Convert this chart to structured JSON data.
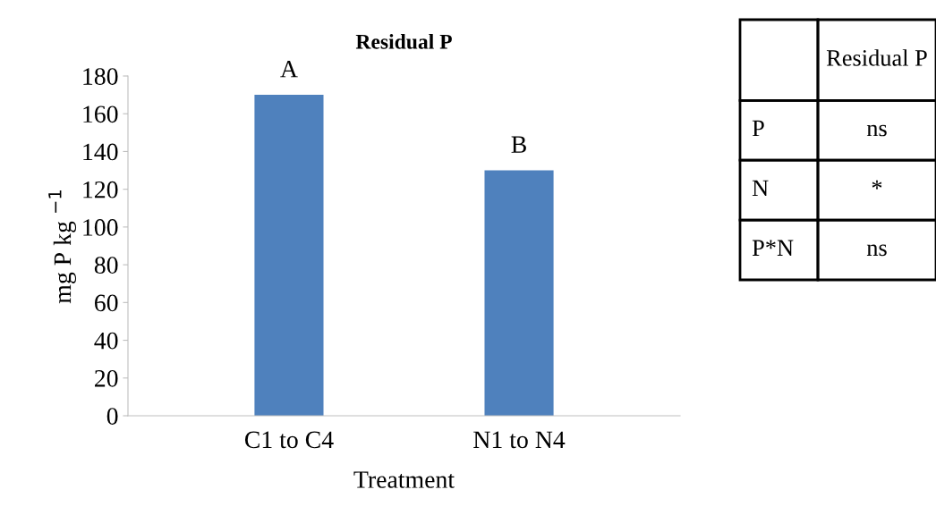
{
  "chart_data": {
    "type": "bar",
    "title": "Residual P",
    "xlabel": "Treatment",
    "ylabel": "mg P kg $^{−1}$",
    "categories": [
      "C1 to C4",
      "N1 to N4"
    ],
    "values": [
      170,
      130
    ],
    "color": "#4f81bd",
    "ylim": [
      0,
      180
    ],
    "yticks": [
      0,
      20,
      40,
      60,
      80,
      100,
      120,
      140,
      160,
      180
    ],
    "grid": false,
    "annotations": [
      {
        "text": "A",
        "x": "C1 to C4",
        "y": 170
      },
      {
        "text": "B",
        "x": "N1 to N4",
        "y": 130
      },
      "Residual P",
      "P",
      "ns",
      "N",
      "*",
      "P*N",
      "ns"
    ]
  }
}
